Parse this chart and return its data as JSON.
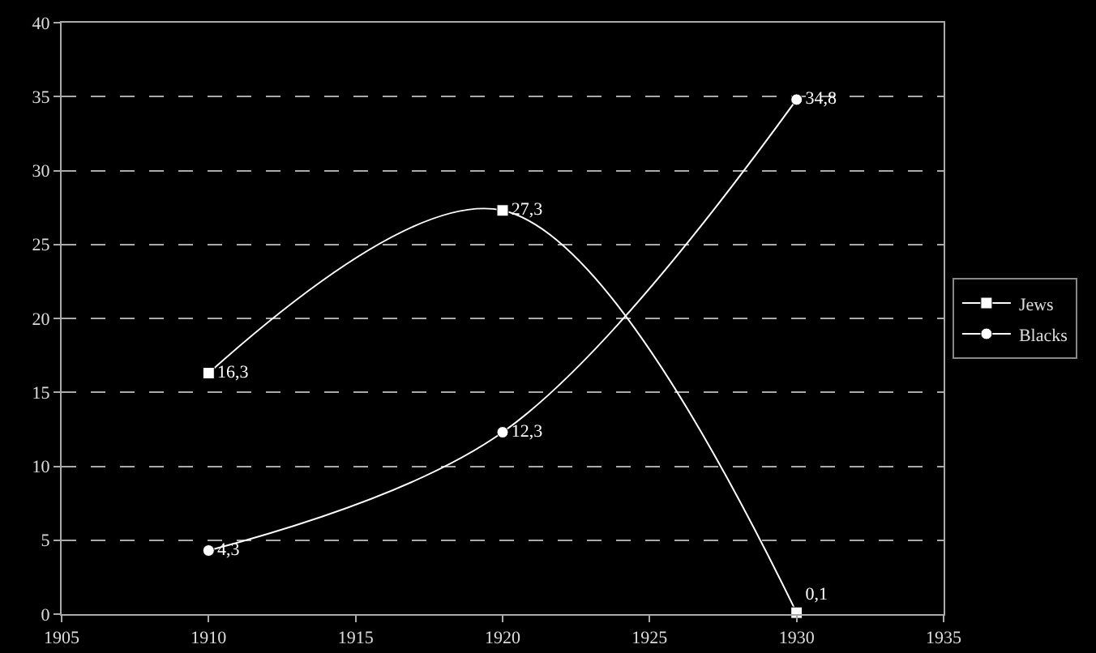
{
  "chart_data": {
    "type": "line",
    "x": [
      1910,
      1920,
      1930
    ],
    "series": [
      {
        "name": "Jews",
        "color": "#ffffff",
        "marker": "square",
        "values": [
          16.3,
          27.3,
          0.1
        ],
        "value_labels": [
          "16,3",
          "27,3",
          "0,1"
        ]
      },
      {
        "name": "Blacks",
        "color": "#ffffff",
        "marker": "circle",
        "values": [
          4.3,
          12.3,
          34.8
        ],
        "value_labels": [
          "4,3",
          "12,3",
          "34,8"
        ]
      }
    ],
    "xlim": [
      1905,
      1935
    ],
    "xticks": [
      1905,
      1910,
      1915,
      1920,
      1925,
      1930,
      1935
    ],
    "ylim": [
      0,
      40
    ],
    "yticks": [
      0,
      5,
      10,
      15,
      20,
      25,
      30,
      35,
      40
    ],
    "grid": "y",
    "legend": "right",
    "line_style": "solid"
  }
}
